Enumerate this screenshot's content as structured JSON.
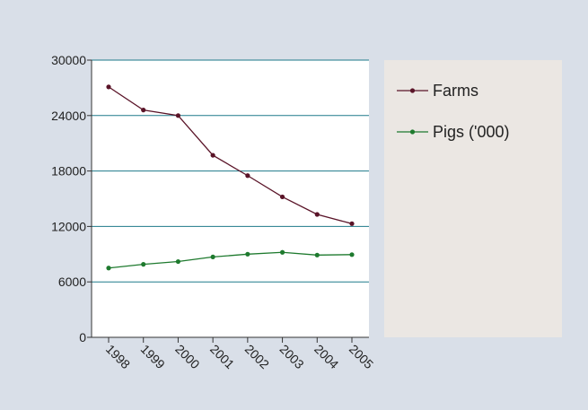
{
  "chart_data": {
    "type": "line",
    "title": "",
    "xlabel": "",
    "ylabel": "",
    "categories": [
      "1998",
      "1999",
      "2000",
      "2001",
      "2002",
      "2003",
      "2004",
      "2005"
    ],
    "ylim": [
      0,
      30000
    ],
    "yticks": [
      "0",
      "6000",
      "12000",
      "18000",
      "24000",
      "30000"
    ],
    "grid": true,
    "legend_position": "right",
    "series": [
      {
        "name": "Farms",
        "color": "#5a1428",
        "values": [
          27100,
          24600,
          24000,
          19700,
          17500,
          15200,
          13300,
          12300
        ]
      },
      {
        "name": "Pigs ('000)",
        "color": "#1e7a2e",
        "values": [
          7500,
          7900,
          8200,
          8700,
          9000,
          9200,
          8900,
          8950
        ]
      }
    ],
    "colors": {
      "background": "#d9dfe8",
      "plot_background": "#ffffff",
      "legend_background": "#ebe7e3",
      "gridline": "#1e7a8a",
      "axis": "#333333",
      "text": "#222222"
    }
  }
}
